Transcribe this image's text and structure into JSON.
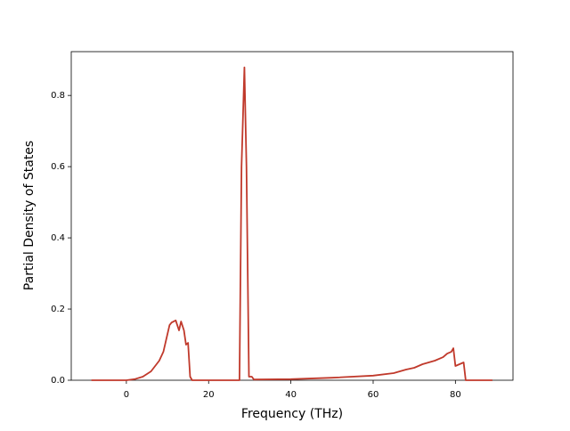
{
  "chart_data": {
    "type": "line",
    "xlabel": "Frequency (THz)",
    "ylabel": "Partial Density of States",
    "x": [
      -8.5,
      0,
      2,
      4,
      6,
      8,
      9,
      10,
      10.5,
      11,
      12,
      12.8,
      13.3,
      14,
      14.5,
      15,
      15.5,
      16,
      27.5,
      28,
      28.7,
      29.2,
      29.8,
      30.5,
      31,
      40,
      50,
      60,
      65,
      68,
      70,
      72,
      75,
      77,
      78,
      79,
      79.5,
      80,
      81,
      82,
      82.5,
      89
    ],
    "series": [
      {
        "color": "#c0392b",
        "values": [
          0,
          0,
          0.003,
          0.01,
          0.025,
          0.055,
          0.08,
          0.13,
          0.155,
          0.162,
          0.168,
          0.14,
          0.165,
          0.14,
          0.1,
          0.105,
          0.01,
          0,
          0,
          0.6,
          0.879,
          0.6,
          0.01,
          0.01,
          0.002,
          0.003,
          0.007,
          0.013,
          0.02,
          0.03,
          0.035,
          0.045,
          0.055,
          0.065,
          0.075,
          0.08,
          0.09,
          0.04,
          0.045,
          0.05,
          0,
          0
        ]
      }
    ],
    "xlim": [
      -13.4,
      94
    ],
    "ylim": [
      0,
      0.923
    ],
    "xticks": [
      0,
      20,
      40,
      60,
      80
    ],
    "yticks": [
      {
        "value": 0,
        "label": "0.0"
      },
      {
        "value": 0.2,
        "label": "0.2"
      },
      {
        "value": 0.4,
        "label": "0.4"
      },
      {
        "value": 0.6,
        "label": "0.6"
      },
      {
        "value": 0.8,
        "label": "0.8"
      }
    ]
  }
}
